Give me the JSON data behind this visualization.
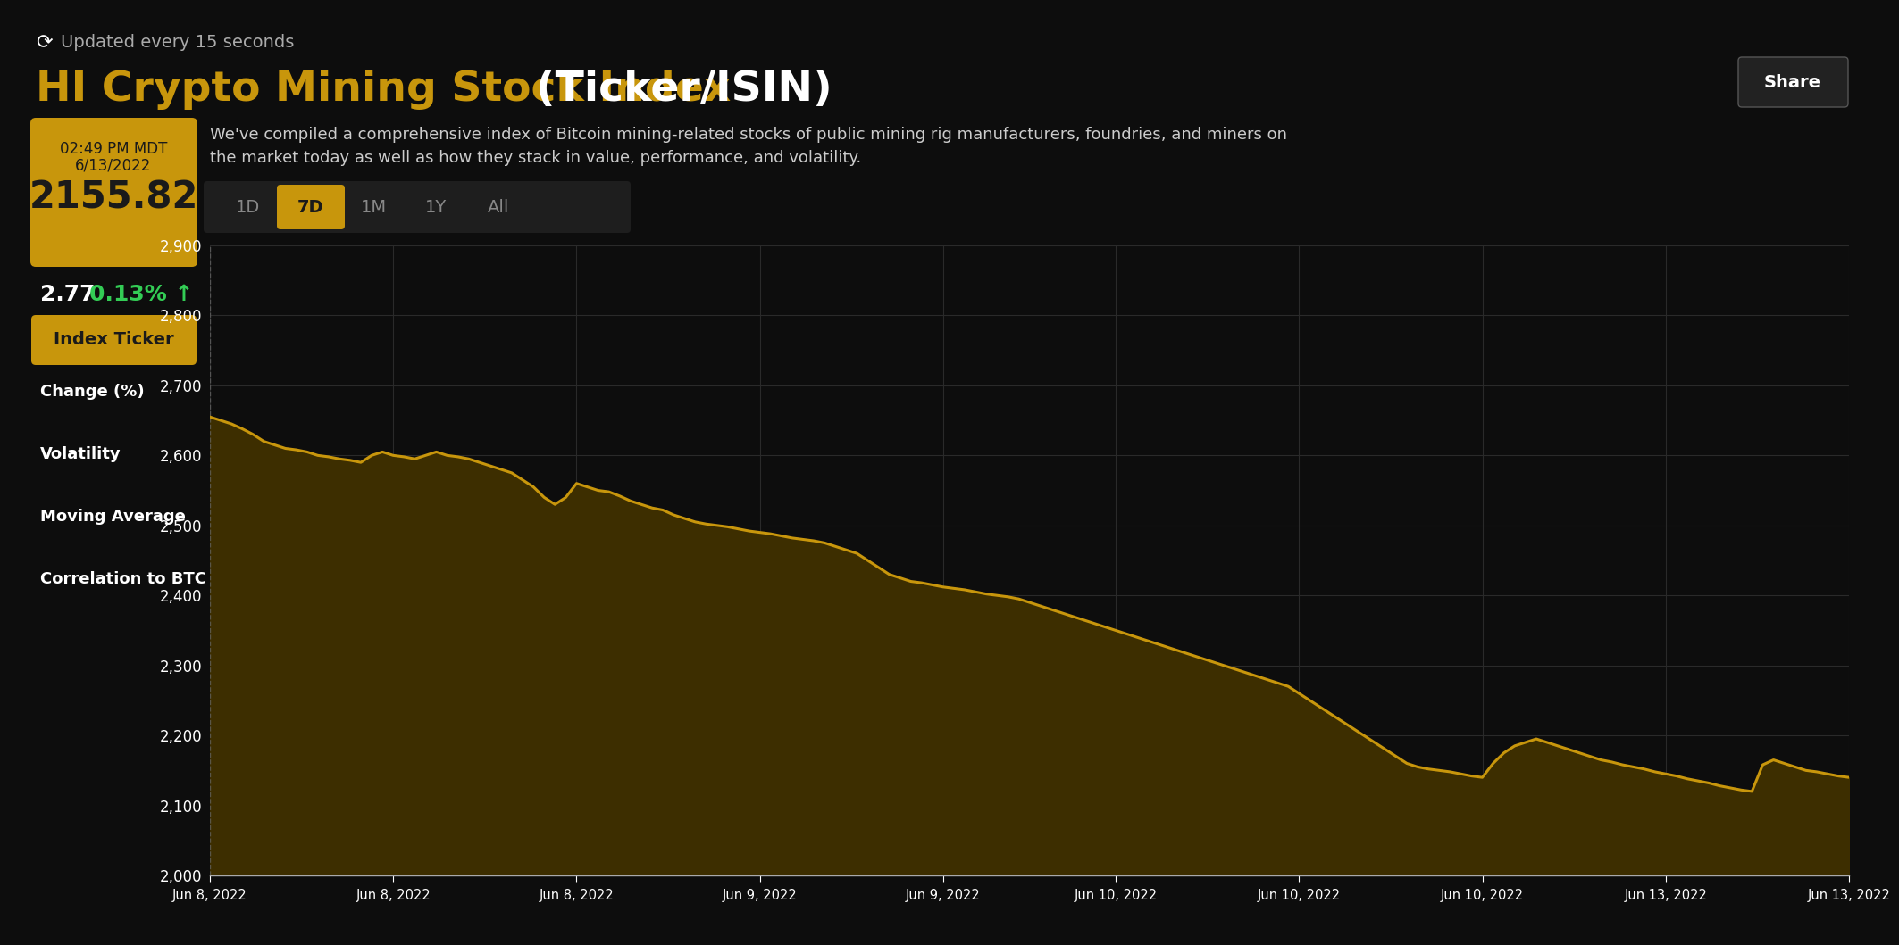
{
  "bg_color": "#0d0d0d",
  "title_gold": "HI Crypto Mining Stock Index ",
  "title_white": "(Ticker/ISIN)",
  "subtitle_line1": "We've compiled a comprehensive index of Bitcoin mining-related stocks of public mining rig manufacturers, foundries, and miners on",
  "subtitle_line2": "the market today as well as how they stack in value, performance, and volatility.",
  "update_text": "Updated every 15 seconds",
  "time_label": "02:49 PM MDT",
  "date_label": "6/13/2022",
  "index_value": "2155.82",
  "change_value": "2.77",
  "change_pct": "0.13%",
  "tabs": [
    "1D",
    "7D",
    "1M",
    "1Y",
    "All"
  ],
  "active_tab": "7D",
  "left_labels": [
    "Index Ticker",
    "Change (%)",
    "Volatility",
    "Moving Average",
    "Correlation to BTC"
  ],
  "share_btn": "Share",
  "gold_color": "#c8960c",
  "line_color": "#c8960c",
  "fill_color_top": "#4a3800",
  "fill_color_bot": "#1a1400",
  "yticks": [
    2000,
    2100,
    2200,
    2300,
    2400,
    2500,
    2600,
    2700,
    2800,
    2900
  ],
  "xtick_labels": [
    "Jun 8, 2022",
    "Jun 8, 2022",
    "Jun 8, 2022",
    "Jun 9, 2022",
    "Jun 9, 2022",
    "Jun 10, 2022",
    "Jun 10, 2022",
    "Jun 10, 2022",
    "Jun 13, 2022",
    "Jun 13, 2022"
  ],
  "y_data": [
    2655,
    2650,
    2645,
    2638,
    2630,
    2620,
    2615,
    2610,
    2608,
    2605,
    2600,
    2598,
    2595,
    2593,
    2590,
    2600,
    2605,
    2600,
    2598,
    2595,
    2600,
    2605,
    2600,
    2598,
    2595,
    2590,
    2585,
    2580,
    2575,
    2565,
    2555,
    2540,
    2530,
    2540,
    2560,
    2555,
    2550,
    2548,
    2542,
    2535,
    2530,
    2525,
    2522,
    2515,
    2510,
    2505,
    2502,
    2500,
    2498,
    2495,
    2492,
    2490,
    2488,
    2485,
    2482,
    2480,
    2478,
    2475,
    2470,
    2465,
    2460,
    2450,
    2440,
    2430,
    2425,
    2420,
    2418,
    2415,
    2412,
    2410,
    2408,
    2405,
    2402,
    2400,
    2398,
    2395,
    2390,
    2385,
    2380,
    2375,
    2370,
    2365,
    2360,
    2355,
    2350,
    2345,
    2340,
    2335,
    2330,
    2325,
    2320,
    2315,
    2310,
    2305,
    2300,
    2295,
    2290,
    2285,
    2280,
    2275,
    2270,
    2260,
    2250,
    2240,
    2230,
    2220,
    2210,
    2200,
    2190,
    2180,
    2170,
    2160,
    2155,
    2152,
    2150,
    2148,
    2145,
    2142,
    2140,
    2160,
    2175,
    2185,
    2190,
    2195,
    2190,
    2185,
    2180,
    2175,
    2170,
    2165,
    2162,
    2158,
    2155,
    2152,
    2148,
    2145,
    2142,
    2138,
    2135,
    2132,
    2128,
    2125,
    2122,
    2120,
    2158,
    2165,
    2160,
    2155,
    2150,
    2148,
    2145,
    2142,
    2140
  ]
}
